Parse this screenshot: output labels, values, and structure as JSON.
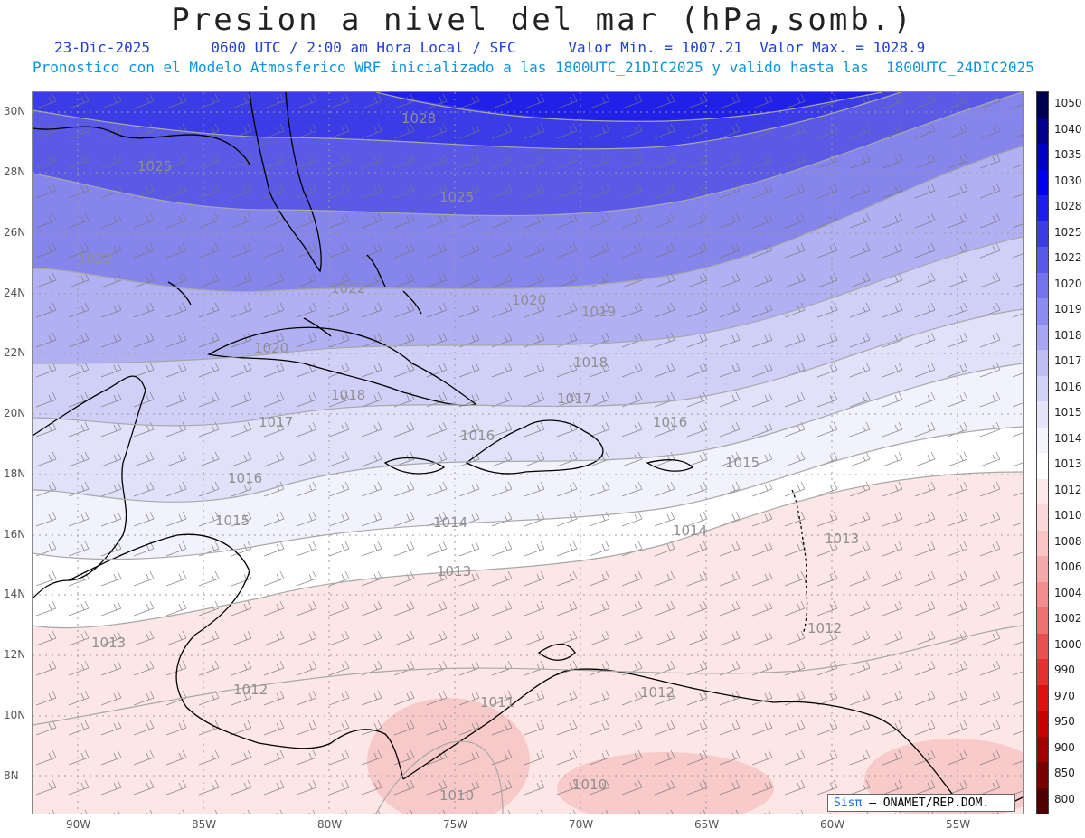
{
  "header": {
    "title": "Presion a nivel del mar (hPa,somb.)",
    "date": "23-Dic-2025",
    "time": "0600 UTC / 2:00 am Hora Local / SFC",
    "min": "Valor Min. = 1007.21",
    "max": "Valor Max. = 1028.9",
    "model_line": "Pronostico con el Modelo Atmosferico WRF inicializado a las 1800UTC_21DIC2025 y valido hasta las  1800UTC_24DIC2025"
  },
  "latitude_labels": [
    "30N",
    "28N",
    "26N",
    "24N",
    "22N",
    "20N",
    "18N",
    "16N",
    "14N",
    "12N",
    "10N",
    "8N"
  ],
  "longitude_labels": [
    "90W",
    "85W",
    "80W",
    "75W",
    "70W",
    "65W",
    "60W",
    "55W"
  ],
  "contour_labels": [
    "1028",
    "1025",
    "1025",
    "1022",
    "1022",
    "1020",
    "1020",
    "1019",
    "1018",
    "1018",
    "1017",
    "1017",
    "1016",
    "1016",
    "1016",
    "1015",
    "1015",
    "1014",
    "1014",
    "1013",
    "1013",
    "1013",
    "1012",
    "1012",
    "1012",
    "1011",
    "1010",
    "1010"
  ],
  "colorbar": {
    "levels": [
      "1050",
      "1040",
      "1035",
      "1030",
      "1028",
      "1025",
      "1022",
      "1020",
      "1019",
      "1018",
      "1017",
      "1016",
      "1015",
      "1014",
      "1013",
      "1012",
      "1010",
      "1008",
      "1006",
      "1004",
      "1002",
      "1000",
      "990",
      "970",
      "950",
      "900",
      "850",
      "800"
    ],
    "colors": [
      "#000050",
      "#00008c",
      "#0000c8",
      "#0000f0",
      "#1e1ef0",
      "#3c3ce8",
      "#5a5ae8",
      "#7373ea",
      "#8c8cee",
      "#a6a6f2",
      "#bebef5",
      "#d2d2f8",
      "#e4e4fb",
      "#f4f4fd",
      "#ffffff",
      "#fde8e8",
      "#fbd8d8",
      "#f8c4c4",
      "#f5aaaa",
      "#f28e8e",
      "#ee7070",
      "#ea5050",
      "#e63030",
      "#e01010",
      "#c80000",
      "#a00000",
      "#780000",
      "#500000"
    ]
  },
  "credit": {
    "logo": "Sisπ",
    "org": " – ONAMET/REP.DOM."
  }
}
